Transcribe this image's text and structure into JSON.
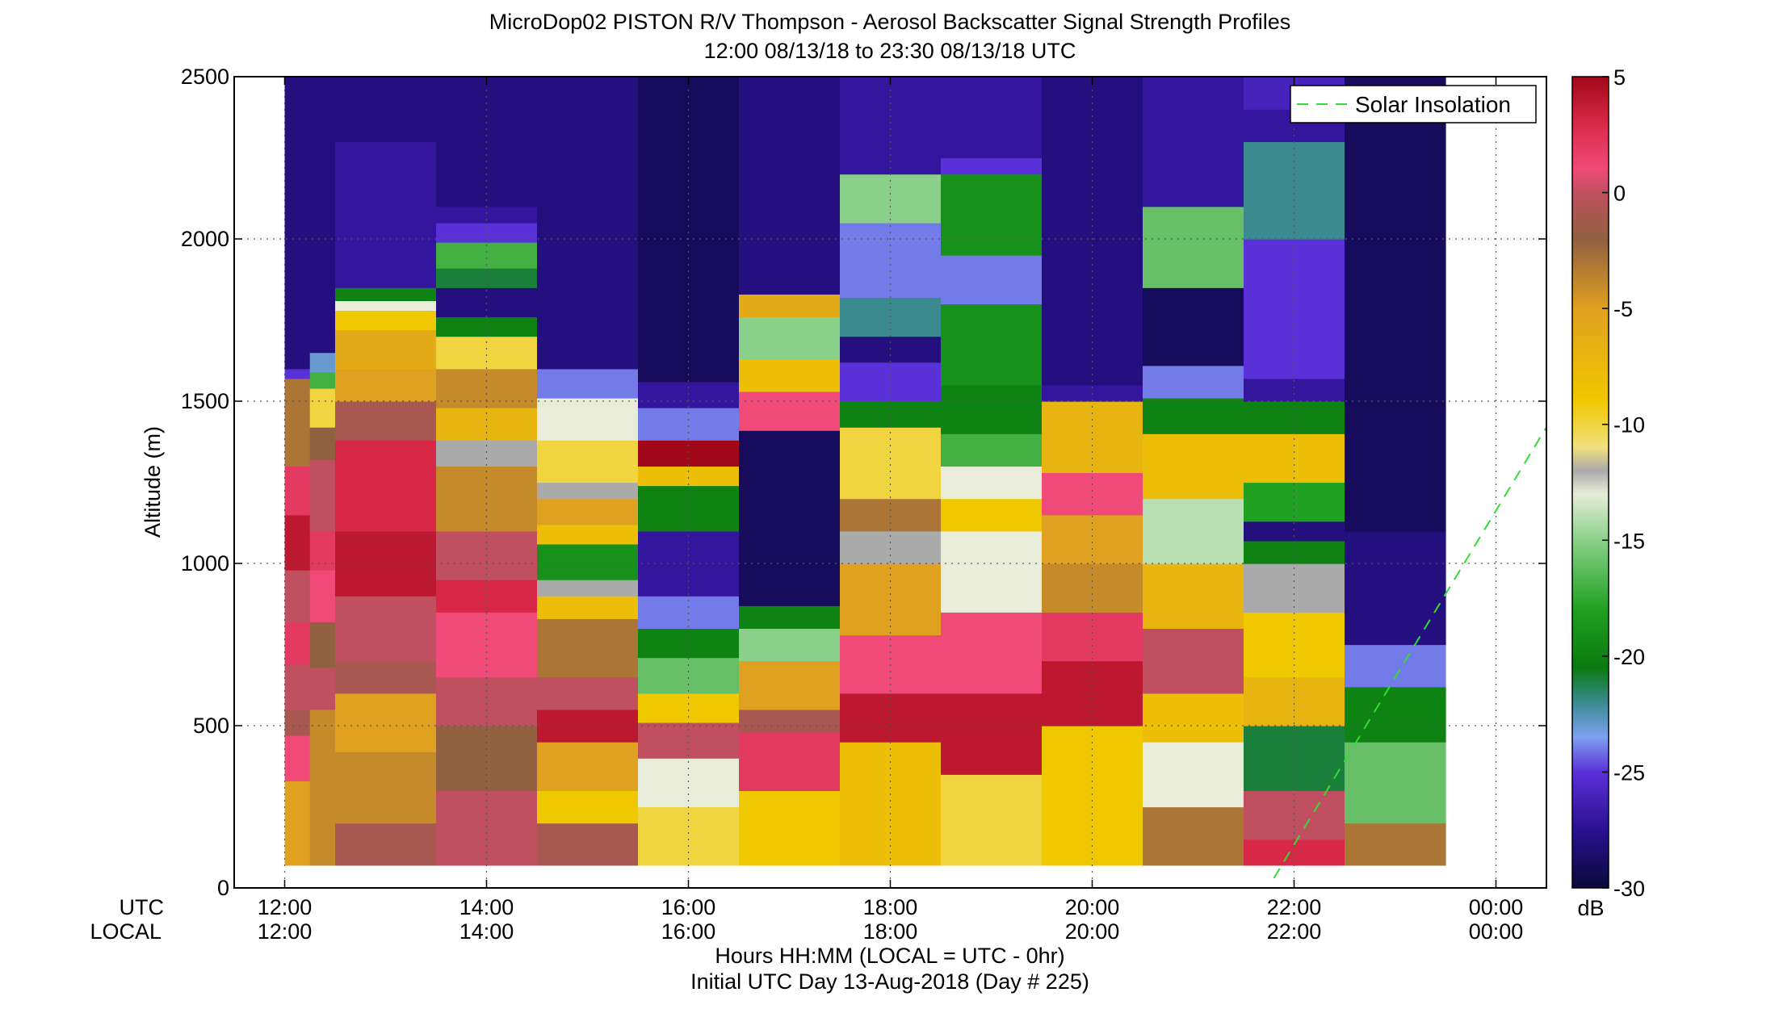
{
  "chart_data": {
    "type": "heatmap",
    "title": "MicroDop02 PISTON R/V Thompson - Aerosol Backscatter Signal Strength Profiles",
    "subtitle": "12:00 08/13/18 to 23:30 08/13/18  UTC",
    "ylabel": "Altitude (m)",
    "xlabel": "Hours HH:MM  (LOCAL = UTC - 0hr)",
    "footer": "Initial UTC Day 13-Aug-2018 (Day # 225)",
    "x_row_labels": [
      "UTC",
      "LOCAL"
    ],
    "xlim_hours": [
      11.5,
      24.5
    ],
    "ylim": [
      0,
      2500
    ],
    "grid": "dotted",
    "y_ticks": [
      0,
      500,
      1000,
      1500,
      2000,
      2500
    ],
    "x_ticks": [
      {
        "hour": 12,
        "utc": "12:00",
        "local": "12:00"
      },
      {
        "hour": 14,
        "utc": "14:00",
        "local": "14:00"
      },
      {
        "hour": 16,
        "utc": "16:00",
        "local": "16:00"
      },
      {
        "hour": 18,
        "utc": "18:00",
        "local": "18:00"
      },
      {
        "hour": 20,
        "utc": "20:00",
        "local": "20:00"
      },
      {
        "hour": 22,
        "utc": "22:00",
        "local": "22:00"
      },
      {
        "hour": 24,
        "utc": "00:00",
        "local": "00:00"
      }
    ],
    "colorbar": {
      "label": "dB",
      "min": -30,
      "max": 5,
      "ticks": [
        5,
        0,
        -5,
        -10,
        -15,
        -20,
        -25,
        -30
      ],
      "stops": [
        {
          "v": -30,
          "c": "#0a0a3a"
        },
        {
          "v": -27.5,
          "c": "#2a1090"
        },
        {
          "v": -25,
          "c": "#5a30d8"
        },
        {
          "v": -23.5,
          "c": "#7fa0f0"
        },
        {
          "v": -22,
          "c": "#3a8a90"
        },
        {
          "v": -20.5,
          "c": "#0a7a10"
        },
        {
          "v": -18,
          "c": "#20a020"
        },
        {
          "v": -15,
          "c": "#8ad08a"
        },
        {
          "v": -13,
          "c": "#e8ecd8"
        },
        {
          "v": -12,
          "c": "#aaaaaa"
        },
        {
          "v": -11,
          "c": "#f0e080"
        },
        {
          "v": -9,
          "c": "#f0c800"
        },
        {
          "v": -5,
          "c": "#e0a020"
        },
        {
          "v": -2,
          "c": "#906040"
        },
        {
          "v": 0,
          "c": "#c05060"
        },
        {
          "v": 1,
          "c": "#f04a78"
        },
        {
          "v": 3,
          "c": "#d82848"
        },
        {
          "v": 5,
          "c": "#a00818"
        }
      ]
    },
    "legend": {
      "entries": [
        "Solar Insolation"
      ],
      "placement": "top-right"
    },
    "solar_insolation": {
      "x": [
        21.8,
        24.5
      ],
      "y": [
        30,
        1420
      ]
    },
    "profiles": [
      {
        "t0": 12.0,
        "t1": 12.25,
        "top": 1570,
        "bands": [
          [
            70,
            -3
          ],
          [
            330,
            -5
          ],
          [
            470,
            1
          ],
          [
            550,
            -1
          ],
          [
            690,
            0
          ],
          [
            820,
            2
          ],
          [
            980,
            0
          ],
          [
            1150,
            4
          ],
          [
            1300,
            2
          ],
          [
            1400,
            -3
          ],
          [
            1570,
            -3
          ],
          [
            1600,
            -25
          ],
          [
            2500,
            -28
          ]
        ]
      },
      {
        "t0": 12.25,
        "t1": 12.5,
        "top": 1650,
        "bands": [
          [
            70,
            -4
          ],
          [
            550,
            -4
          ],
          [
            680,
            0
          ],
          [
            820,
            -2
          ],
          [
            980,
            1
          ],
          [
            1100,
            2
          ],
          [
            1320,
            0
          ],
          [
            1420,
            -2
          ],
          [
            1540,
            -10
          ],
          [
            1590,
            -17
          ],
          [
            1650,
            -23
          ],
          [
            2500,
            -28
          ]
        ]
      },
      {
        "t0": 12.5,
        "t1": 13.5,
        "top": 1850,
        "bands": [
          [
            70,
            1
          ],
          [
            200,
            -1
          ],
          [
            420,
            -4
          ],
          [
            600,
            -5
          ],
          [
            700,
            -1
          ],
          [
            900,
            0
          ],
          [
            1100,
            4
          ],
          [
            1380,
            3
          ],
          [
            1500,
            -1
          ],
          [
            1600,
            -5
          ],
          [
            1720,
            -6
          ],
          [
            1780,
            -9
          ],
          [
            1810,
            -13
          ],
          [
            1850,
            -20
          ],
          [
            2300,
            -27
          ],
          [
            2500,
            -28
          ]
        ]
      },
      {
        "t0": 13.5,
        "t1": 14.5,
        "top": 2100,
        "bands": [
          [
            70,
            4
          ],
          [
            300,
            0
          ],
          [
            500,
            -2
          ],
          [
            650,
            0
          ],
          [
            850,
            1
          ],
          [
            950,
            3
          ],
          [
            1100,
            0
          ],
          [
            1300,
            -4
          ],
          [
            1380,
            -12
          ],
          [
            1480,
            -7
          ],
          [
            1600,
            -4
          ],
          [
            1700,
            -10
          ],
          [
            1760,
            -20
          ],
          [
            1850,
            -28
          ],
          [
            1910,
            -21
          ],
          [
            1990,
            -17
          ],
          [
            2050,
            -25
          ],
          [
            2100,
            -27
          ],
          [
            2500,
            -28
          ]
        ]
      },
      {
        "t0": 14.5,
        "t1": 15.5,
        "top": 1620,
        "bands": [
          [
            70,
            1
          ],
          [
            200,
            -1
          ],
          [
            300,
            -9
          ],
          [
            450,
            -5
          ],
          [
            550,
            4
          ],
          [
            650,
            0
          ],
          [
            830,
            -3
          ],
          [
            900,
            -8
          ],
          [
            950,
            -12
          ],
          [
            1060,
            -19
          ],
          [
            1120,
            -8
          ],
          [
            1200,
            -5
          ],
          [
            1250,
            -12
          ],
          [
            1380,
            -10
          ],
          [
            1510,
            -13
          ],
          [
            1600,
            -24
          ],
          [
            2500,
            -28
          ]
        ]
      },
      {
        "t0": 15.5,
        "t1": 16.5,
        "top": 1560,
        "bands": [
          [
            70,
            3
          ],
          [
            250,
            -10
          ],
          [
            400,
            -13
          ],
          [
            510,
            0
          ],
          [
            600,
            -9
          ],
          [
            710,
            -16
          ],
          [
            800,
            -20
          ],
          [
            900,
            -24
          ],
          [
            1100,
            -27
          ],
          [
            1240,
            -20
          ],
          [
            1300,
            -8
          ],
          [
            1380,
            5
          ],
          [
            1480,
            -24
          ],
          [
            1560,
            -27
          ],
          [
            2500,
            -29
          ]
        ]
      },
      {
        "t0": 16.5,
        "t1": 17.5,
        "top": 1830,
        "bands": [
          [
            70,
            2
          ],
          [
            300,
            -9
          ],
          [
            480,
            2
          ],
          [
            550,
            -1
          ],
          [
            700,
            -5
          ],
          [
            800,
            -15
          ],
          [
            870,
            -20
          ],
          [
            1410,
            -29
          ],
          [
            1530,
            1
          ],
          [
            1630,
            -8
          ],
          [
            1760,
            -15
          ],
          [
            1830,
            -6
          ],
          [
            2500,
            -28
          ]
        ]
      },
      {
        "t0": 17.5,
        "t1": 18.5,
        "top": 2200,
        "bands": [
          [
            70,
            1
          ],
          [
            450,
            -8
          ],
          [
            600,
            4
          ],
          [
            780,
            1
          ],
          [
            1000,
            -5
          ],
          [
            1100,
            -12
          ],
          [
            1200,
            -3
          ],
          [
            1420,
            -10
          ],
          [
            1500,
            -20
          ],
          [
            1620,
            -25
          ],
          [
            1700,
            -28
          ],
          [
            1820,
            -22
          ],
          [
            2050,
            -24
          ],
          [
            2200,
            -15
          ],
          [
            2500,
            -27
          ]
        ]
      },
      {
        "t0": 18.5,
        "t1": 19.5,
        "top": 2250,
        "bands": [
          [
            70,
            -2
          ],
          [
            350,
            -10
          ],
          [
            600,
            4
          ],
          [
            850,
            1
          ],
          [
            1100,
            -13
          ],
          [
            1200,
            -9
          ],
          [
            1300,
            -13
          ],
          [
            1400,
            -17
          ],
          [
            1550,
            -20
          ],
          [
            1800,
            -19
          ],
          [
            1950,
            -24
          ],
          [
            2200,
            -19
          ],
          [
            2250,
            -25
          ],
          [
            2500,
            -27
          ]
        ]
      },
      {
        "t0": 19.5,
        "t1": 20.5,
        "top": 1550,
        "bands": [
          [
            70,
            -7
          ],
          [
            500,
            -9
          ],
          [
            700,
            4
          ],
          [
            850,
            2
          ],
          [
            1000,
            -4
          ],
          [
            1150,
            -5
          ],
          [
            1280,
            1
          ],
          [
            1500,
            -7
          ],
          [
            1550,
            -27
          ],
          [
            2500,
            -28
          ]
        ]
      },
      {
        "t0": 20.5,
        "t1": 21.5,
        "top": 1610,
        "bands": [
          [
            70,
            -9
          ],
          [
            250,
            -3
          ],
          [
            450,
            -13
          ],
          [
            600,
            -8
          ],
          [
            800,
            0
          ],
          [
            1000,
            -7
          ],
          [
            1200,
            -14
          ],
          [
            1400,
            -8
          ],
          [
            1510,
            -20
          ],
          [
            1610,
            -24
          ],
          [
            1850,
            -29
          ],
          [
            2100,
            -16
          ],
          [
            2500,
            -27
          ]
        ]
      },
      {
        "t0": 21.5,
        "t1": 22.5,
        "top": 2400,
        "bands": [
          [
            70,
            -7
          ],
          [
            150,
            3
          ],
          [
            300,
            0
          ],
          [
            500,
            -21
          ],
          [
            650,
            -7
          ],
          [
            850,
            -9
          ],
          [
            1000,
            -12
          ],
          [
            1070,
            -20
          ],
          [
            1130,
            -28
          ],
          [
            1250,
            -18
          ],
          [
            1400,
            -8
          ],
          [
            1500,
            -20
          ],
          [
            1570,
            -27
          ],
          [
            2000,
            -25
          ],
          [
            2300,
            -22
          ],
          [
            2400,
            -27
          ],
          [
            2500,
            -26
          ]
        ]
      },
      {
        "t0": 22.5,
        "t1": 23.5,
        "top": 750,
        "bands": [
          [
            70,
            -8
          ],
          [
            200,
            -3
          ],
          [
            450,
            -16
          ],
          [
            620,
            -20
          ],
          [
            750,
            -24
          ],
          [
            1100,
            -28
          ],
          [
            2500,
            -29
          ]
        ]
      }
    ]
  }
}
